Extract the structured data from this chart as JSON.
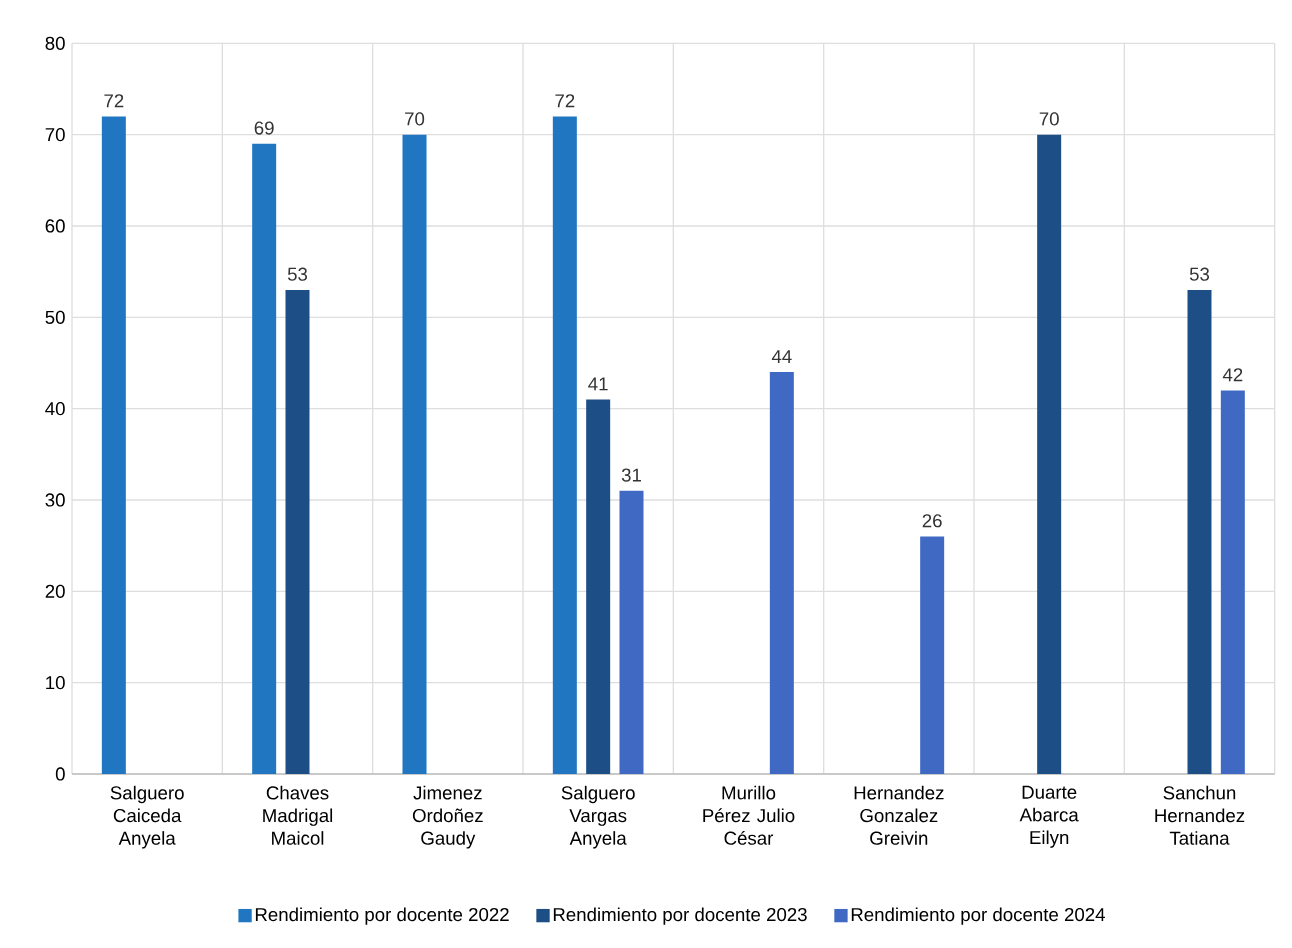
{
  "chart_data": {
    "type": "bar",
    "categories": [
      "Salguero Caiceda Anyela",
      "Chaves Madrigal Maicol",
      "Jimenez Ordoñez Gaudy",
      "Salguero Vargas Anyela",
      "Murillo Pérez Julio César",
      "Hernandez Gonzalez Greivin",
      "Duarte Abarca Eilyn",
      "Sanchun Hernandez Tatiana"
    ],
    "series": [
      {
        "name": "Rendimiento por docente 2022",
        "color": "#2176c1",
        "values": [
          72,
          69,
          70,
          72,
          null,
          null,
          null,
          null
        ]
      },
      {
        "name": "Rendimiento por docente 2023",
        "color": "#1d4e85",
        "values": [
          null,
          53,
          null,
          41,
          null,
          null,
          70,
          53
        ]
      },
      {
        "name": "Rendimiento por docente 2024",
        "color": "#4069c4",
        "values": [
          null,
          null,
          null,
          31,
          44,
          26,
          null,
          42
        ]
      }
    ],
    "ylim": [
      0,
      80
    ],
    "yticks": [
      0,
      10,
      20,
      30,
      40,
      50,
      60,
      70,
      80
    ],
    "grid": true,
    "legend": "bottom",
    "data_labels": true
  }
}
